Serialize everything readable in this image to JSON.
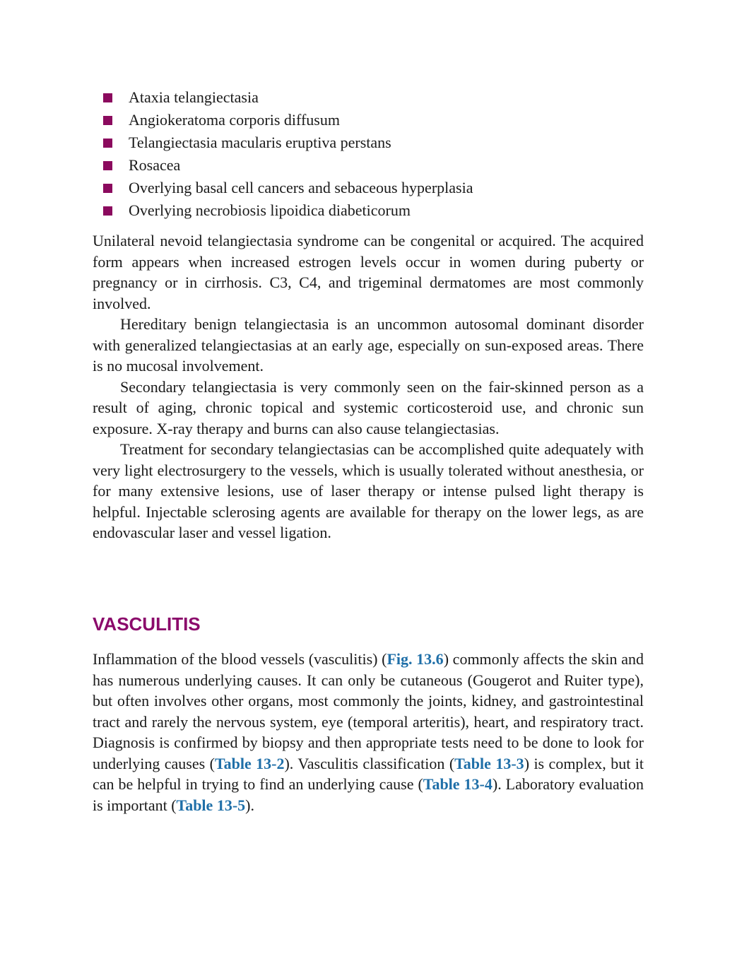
{
  "bullets": [
    "Ataxia telangiectasia",
    "Angiokeratoma corporis diffusum",
    "Telangiectasia macularis eruptiva perstans",
    "Rosacea",
    "Overlying basal cell cancers and sebaceous hyperplasia",
    "Overlying necrobiosis lipoidica diabeticorum"
  ],
  "paragraphs": [
    "Unilateral nevoid telangiectasia syndrome can be congenital or acquired. The acquired form appears when increased estrogen levels occur in women during puberty or pregnancy or in cirrhosis. C3, C4, and trigeminal dermatomes are most commonly involved.",
    "Hereditary benign telangiectasia is an uncommon autosomal dominant disorder with generalized telangiectasias at an early age, especially on sun-exposed areas. There is no mucosal involvement.",
    "Secondary telangiectasia is very commonly seen on the fair-skinned person as a result of aging, chronic topical and systemic corticosteroid use, and chronic sun exposure. X-ray therapy and burns can also cause telangiectasias.",
    "Treatment for secondary telangiectasias can be accomplished quite adequately with very light electrosurgery to the vessels, which is usually tolerated without anesthesia, or for many extensive lesions, use of laser therapy or intense pulsed light therapy is helpful. Injectable sclerosing agents are available for therapy on the lower legs, as are endovascular laser and vessel ligation."
  ],
  "section": {
    "heading": "VASCULITIS",
    "parts": [
      {
        "text": "Inflammation of the blood vessels (vasculitis) ("
      },
      {
        "link": "Fig. 13.6"
      },
      {
        "text": ") commonly affects the skin and has numerous underlying causes. It can only be cutaneous (Gougerot and Ruiter type), but often involves other organs, most commonly the joints, kidney, and gastrointestinal tract and rarely the nervous system, eye (temporal arteritis), heart, and respiratory tract. Diagnosis is confirmed by biopsy and then appropriate tests need to be done to look for underlying causes ("
      },
      {
        "link": "Table 13-2"
      },
      {
        "text": "). Vasculitis classification ("
      },
      {
        "link": "Table 13-3"
      },
      {
        "text": ") is complex, but it can be helpful in trying to find an underlying cause ("
      },
      {
        "link": "Table 13-4"
      },
      {
        "text": "). Laboratory evaluation is important ("
      },
      {
        "link": "Table 13-5"
      },
      {
        "text": ")."
      }
    ]
  }
}
